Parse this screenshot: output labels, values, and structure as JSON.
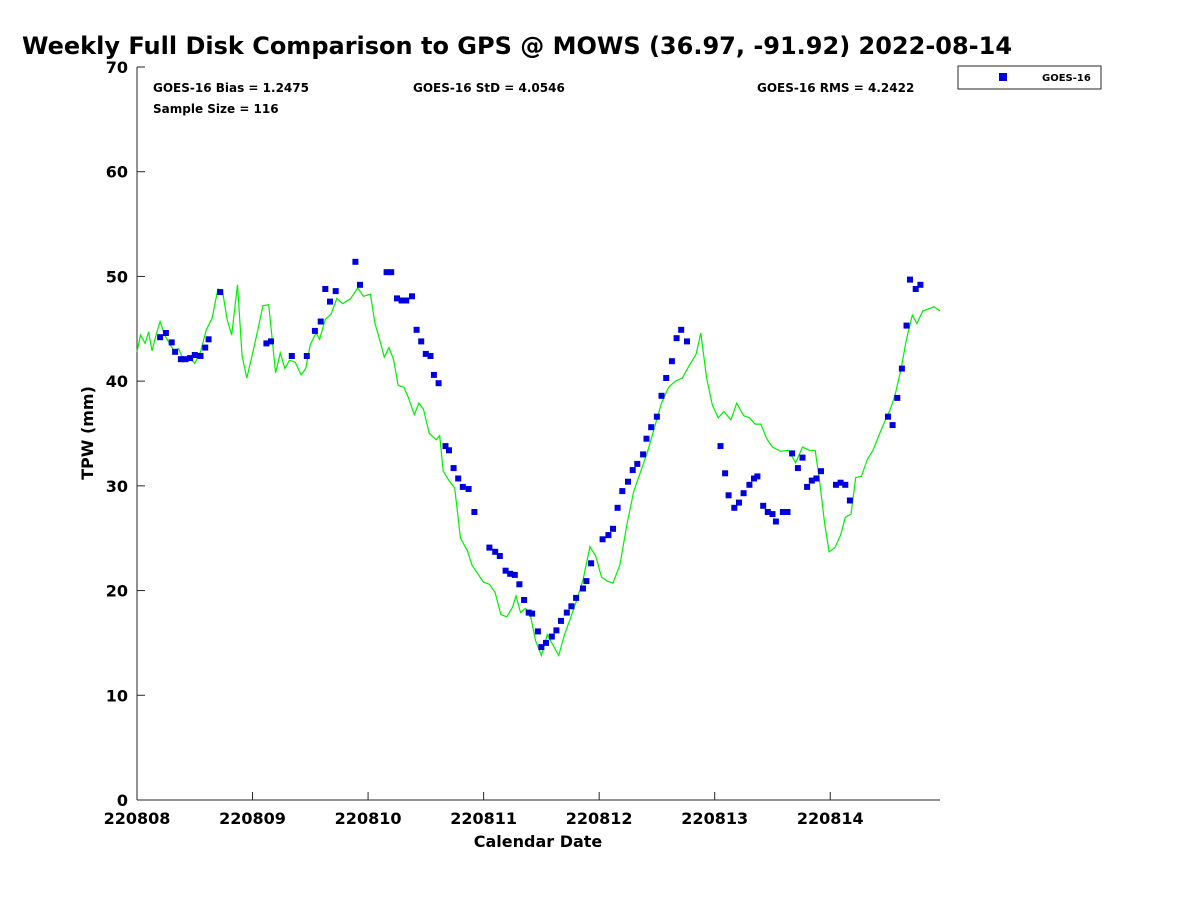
{
  "chart_data": {
    "type": "scatter",
    "title": "Weekly Full Disk Comparison to GPS @ MOWS (36.97, -91.92) 2022-08-14",
    "xlabel": "Calendar Date",
    "ylabel": "TPW (mm)",
    "xlim": [
      0,
      6.95
    ],
    "ylim": [
      0,
      70
    ],
    "grid": false,
    "legend_position": "top-right, outside plot",
    "x_ticks": [
      {
        "v": 0,
        "label": "220808"
      },
      {
        "v": 1,
        "label": "220809"
      },
      {
        "v": 2,
        "label": "220810"
      },
      {
        "v": 3,
        "label": "220811"
      },
      {
        "v": 4,
        "label": "220812"
      },
      {
        "v": 5,
        "label": "220813"
      },
      {
        "v": 6,
        "label": "220814"
      }
    ],
    "y_ticks": [
      0,
      10,
      20,
      30,
      40,
      50,
      60,
      70
    ],
    "stats": {
      "bias": "GOES-16 Bias = 1.2475",
      "std": "GOES-16 StD = 4.0546",
      "rms": "GOES-16 RMS = 4.2422",
      "sample": "Sample Size = 116"
    },
    "series": [
      {
        "name": "GOES-16",
        "marker": "square",
        "color": "#0000dd",
        "points": [
          [
            0.2,
            44.2
          ],
          [
            0.25,
            44.6
          ],
          [
            0.3,
            43.7
          ],
          [
            0.33,
            42.8
          ],
          [
            0.38,
            42.1
          ],
          [
            0.42,
            42.1
          ],
          [
            0.46,
            42.2
          ],
          [
            0.5,
            42.5
          ],
          [
            0.55,
            42.4
          ],
          [
            0.59,
            43.2
          ],
          [
            0.62,
            44.0
          ],
          [
            0.72,
            48.5
          ],
          [
            1.12,
            43.6
          ],
          [
            1.16,
            43.8
          ],
          [
            1.34,
            42.4
          ],
          [
            1.47,
            42.4
          ],
          [
            1.54,
            44.8
          ],
          [
            1.59,
            45.7
          ],
          [
            1.63,
            48.8
          ],
          [
            1.67,
            47.6
          ],
          [
            1.72,
            48.6
          ],
          [
            1.89,
            51.4
          ],
          [
            1.93,
            49.2
          ],
          [
            2.16,
            50.4
          ],
          [
            2.2,
            50.4
          ],
          [
            2.25,
            47.9
          ],
          [
            2.29,
            47.7
          ],
          [
            2.33,
            47.7
          ],
          [
            2.38,
            48.1
          ],
          [
            2.42,
            44.9
          ],
          [
            2.46,
            43.8
          ],
          [
            2.5,
            42.6
          ],
          [
            2.54,
            42.4
          ],
          [
            2.57,
            40.6
          ],
          [
            2.61,
            39.8
          ],
          [
            2.67,
            33.8
          ],
          [
            2.7,
            33.4
          ],
          [
            2.74,
            31.7
          ],
          [
            2.78,
            30.7
          ],
          [
            2.82,
            29.9
          ],
          [
            2.87,
            29.7
          ],
          [
            2.92,
            27.5
          ],
          [
            3.05,
            24.1
          ],
          [
            3.1,
            23.7
          ],
          [
            3.14,
            23.3
          ],
          [
            3.19,
            21.9
          ],
          [
            3.23,
            21.6
          ],
          [
            3.27,
            21.5
          ],
          [
            3.31,
            20.6
          ],
          [
            3.35,
            19.1
          ],
          [
            3.39,
            17.9
          ],
          [
            3.42,
            17.8
          ],
          [
            3.47,
            16.1
          ],
          [
            3.5,
            14.6
          ],
          [
            3.54,
            15.0
          ],
          [
            3.59,
            15.6
          ],
          [
            3.63,
            16.2
          ],
          [
            3.67,
            17.1
          ],
          [
            3.72,
            17.9
          ],
          [
            3.76,
            18.5
          ],
          [
            3.8,
            19.3
          ],
          [
            3.86,
            20.2
          ],
          [
            3.89,
            20.9
          ],
          [
            3.93,
            22.6
          ],
          [
            4.03,
            24.9
          ],
          [
            4.08,
            25.3
          ],
          [
            4.12,
            25.9
          ],
          [
            4.16,
            27.9
          ],
          [
            4.2,
            29.5
          ],
          [
            4.25,
            30.4
          ],
          [
            4.29,
            31.5
          ],
          [
            4.33,
            32.1
          ],
          [
            4.38,
            33.0
          ],
          [
            4.41,
            34.5
          ],
          [
            4.45,
            35.6
          ],
          [
            4.5,
            36.6
          ],
          [
            4.54,
            38.6
          ],
          [
            4.58,
            40.3
          ],
          [
            4.63,
            41.9
          ],
          [
            4.67,
            44.1
          ],
          [
            4.71,
            44.9
          ],
          [
            4.76,
            43.8
          ],
          [
            5.05,
            33.8
          ],
          [
            5.09,
            31.2
          ],
          [
            5.12,
            29.1
          ],
          [
            5.17,
            27.9
          ],
          [
            5.21,
            28.4
          ],
          [
            5.25,
            29.3
          ],
          [
            5.3,
            30.1
          ],
          [
            5.34,
            30.7
          ],
          [
            5.37,
            30.9
          ],
          [
            5.42,
            28.1
          ],
          [
            5.46,
            27.5
          ],
          [
            5.5,
            27.3
          ],
          [
            5.53,
            26.6
          ],
          [
            5.59,
            27.5
          ],
          [
            5.63,
            27.5
          ],
          [
            5.67,
            33.1
          ],
          [
            5.72,
            31.7
          ],
          [
            5.76,
            32.7
          ],
          [
            5.8,
            29.9
          ],
          [
            5.84,
            30.5
          ],
          [
            5.88,
            30.7
          ],
          [
            5.92,
            31.4
          ],
          [
            6.05,
            30.1
          ],
          [
            6.09,
            30.3
          ],
          [
            6.13,
            30.1
          ],
          [
            6.17,
            28.6
          ],
          [
            6.5,
            36.6
          ],
          [
            6.54,
            35.8
          ],
          [
            6.58,
            38.4
          ],
          [
            6.62,
            41.2
          ],
          [
            6.66,
            45.3
          ],
          [
            6.69,
            49.7
          ],
          [
            6.74,
            48.8
          ],
          [
            6.78,
            49.2
          ]
        ]
      },
      {
        "name": "",
        "kind": "line",
        "color": "#00ee00",
        "points": [
          [
            0.0,
            42.8
          ],
          [
            0.03,
            44.4
          ],
          [
            0.07,
            43.6
          ],
          [
            0.1,
            44.7
          ],
          [
            0.13,
            42.9
          ],
          [
            0.17,
            44.6
          ],
          [
            0.2,
            45.7
          ],
          [
            0.24,
            44.4
          ],
          [
            0.28,
            43.6
          ],
          [
            0.32,
            42.9
          ],
          [
            0.36,
            43.1
          ],
          [
            0.4,
            42.1
          ],
          [
            0.45,
            42.3
          ],
          [
            0.5,
            41.7
          ],
          [
            0.55,
            42.8
          ],
          [
            0.6,
            44.9
          ],
          [
            0.65,
            46.0
          ],
          [
            0.7,
            48.8
          ],
          [
            0.74,
            48.6
          ],
          [
            0.78,
            45.9
          ],
          [
            0.82,
            44.4
          ],
          [
            0.87,
            49.2
          ],
          [
            0.91,
            42.4
          ],
          [
            0.95,
            40.3
          ],
          [
            1.0,
            42.6
          ],
          [
            1.05,
            45.1
          ],
          [
            1.09,
            47.2
          ],
          [
            1.14,
            47.3
          ],
          [
            1.2,
            40.8
          ],
          [
            1.24,
            42.7
          ],
          [
            1.28,
            41.2
          ],
          [
            1.32,
            42.0
          ],
          [
            1.37,
            41.8
          ],
          [
            1.42,
            40.6
          ],
          [
            1.46,
            41.2
          ],
          [
            1.5,
            43.5
          ],
          [
            1.55,
            44.6
          ],
          [
            1.58,
            44.0
          ],
          [
            1.63,
            45.9
          ],
          [
            1.68,
            46.4
          ],
          [
            1.73,
            47.9
          ],
          [
            1.78,
            47.4
          ],
          [
            1.85,
            47.9
          ],
          [
            1.91,
            48.9
          ],
          [
            1.96,
            48.1
          ],
          [
            2.02,
            48.3
          ],
          [
            2.06,
            45.5
          ],
          [
            2.1,
            44.0
          ],
          [
            2.14,
            42.3
          ],
          [
            2.18,
            43.2
          ],
          [
            2.22,
            42.1
          ],
          [
            2.26,
            39.6
          ],
          [
            2.31,
            39.4
          ],
          [
            2.35,
            38.4
          ],
          [
            2.4,
            36.8
          ],
          [
            2.44,
            37.9
          ],
          [
            2.48,
            37.3
          ],
          [
            2.53,
            35.0
          ],
          [
            2.59,
            34.4
          ],
          [
            2.62,
            34.8
          ],
          [
            2.65,
            31.4
          ],
          [
            2.7,
            30.5
          ],
          [
            2.75,
            29.8
          ],
          [
            2.8,
            25.0
          ],
          [
            2.86,
            23.8
          ],
          [
            2.9,
            22.4
          ],
          [
            2.95,
            21.6
          ],
          [
            3.0,
            20.8
          ],
          [
            3.05,
            20.6
          ],
          [
            3.1,
            19.8
          ],
          [
            3.15,
            17.7
          ],
          [
            3.2,
            17.5
          ],
          [
            3.25,
            18.4
          ],
          [
            3.28,
            19.5
          ],
          [
            3.32,
            17.9
          ],
          [
            3.36,
            18.3
          ],
          [
            3.4,
            17.9
          ],
          [
            3.45,
            15.2
          ],
          [
            3.5,
            13.8
          ],
          [
            3.55,
            15.8
          ],
          [
            3.6,
            14.8
          ],
          [
            3.65,
            13.8
          ],
          [
            3.7,
            15.8
          ],
          [
            3.75,
            17.3
          ],
          [
            3.8,
            18.9
          ],
          [
            3.86,
            21.0
          ],
          [
            3.92,
            24.2
          ],
          [
            3.97,
            23.3
          ],
          [
            4.02,
            21.3
          ],
          [
            4.07,
            20.9
          ],
          [
            4.12,
            20.7
          ],
          [
            4.18,
            22.5
          ],
          [
            4.24,
            26.3
          ],
          [
            4.3,
            29.5
          ],
          [
            4.36,
            31.4
          ],
          [
            4.42,
            33.3
          ],
          [
            4.48,
            35.6
          ],
          [
            4.54,
            37.9
          ],
          [
            4.6,
            39.4
          ],
          [
            4.66,
            40.0
          ],
          [
            4.72,
            40.3
          ],
          [
            4.78,
            41.5
          ],
          [
            4.84,
            42.6
          ],
          [
            4.88,
            44.6
          ],
          [
            4.93,
            40.3
          ],
          [
            4.98,
            37.7
          ],
          [
            5.03,
            36.5
          ],
          [
            5.08,
            37.1
          ],
          [
            5.14,
            36.3
          ],
          [
            5.19,
            37.9
          ],
          [
            5.25,
            36.7
          ],
          [
            5.3,
            36.5
          ],
          [
            5.35,
            35.9
          ],
          [
            5.4,
            35.9
          ],
          [
            5.45,
            34.5
          ],
          [
            5.5,
            33.7
          ],
          [
            5.57,
            33.3
          ],
          [
            5.64,
            33.4
          ],
          [
            5.7,
            32.2
          ],
          [
            5.76,
            33.7
          ],
          [
            5.82,
            33.4
          ],
          [
            5.87,
            33.4
          ],
          [
            5.91,
            30.3
          ],
          [
            5.95,
            26.5
          ],
          [
            5.99,
            23.7
          ],
          [
            6.04,
            24.1
          ],
          [
            6.09,
            25.3
          ],
          [
            6.13,
            27.0
          ],
          [
            6.18,
            27.3
          ],
          [
            6.22,
            30.8
          ],
          [
            6.27,
            30.9
          ],
          [
            6.32,
            32.5
          ],
          [
            6.37,
            33.4
          ],
          [
            6.42,
            34.8
          ],
          [
            6.47,
            36.1
          ],
          [
            6.52,
            37.3
          ],
          [
            6.56,
            38.6
          ],
          [
            6.61,
            41.0
          ],
          [
            6.66,
            44.0
          ],
          [
            6.71,
            46.3
          ],
          [
            6.75,
            45.5
          ],
          [
            6.8,
            46.7
          ],
          [
            6.85,
            46.9
          ],
          [
            6.9,
            47.1
          ],
          [
            6.95,
            46.7
          ]
        ]
      }
    ]
  }
}
